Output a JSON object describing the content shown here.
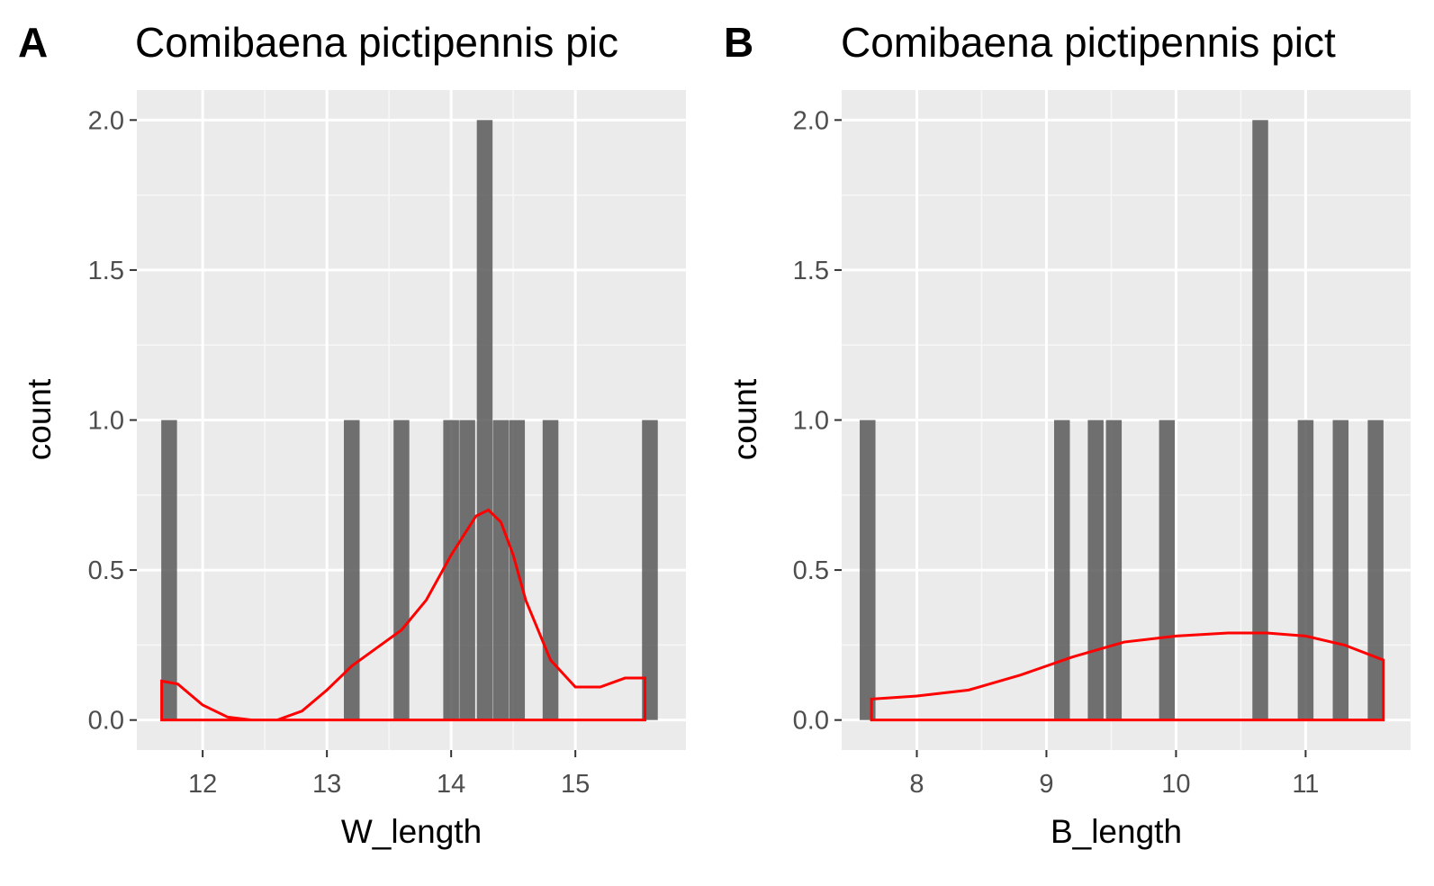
{
  "chart_data": [
    {
      "type": "bar",
      "tag": "A",
      "title": "Comibaena pictipennis pic",
      "xlabel": "W_length",
      "ylabel": "count",
      "xlim": [
        11.47,
        15.89
      ],
      "ylim": [
        -0.1,
        2.1
      ],
      "xticks": [
        12,
        13,
        14,
        15
      ],
      "xtick_labels": [
        "12",
        "13",
        "14",
        "15"
      ],
      "yticks": [
        0,
        0.5,
        1,
        1.5,
        2
      ],
      "ytick_labels": [
        "0.0",
        "0.5",
        "1.0",
        "1.5",
        "2.0"
      ],
      "grid": true,
      "bars": [
        {
          "x": 11.73,
          "count": 1
        },
        {
          "x": 13.2,
          "count": 1
        },
        {
          "x": 13.6,
          "count": 1
        },
        {
          "x": 14.0,
          "count": 1
        },
        {
          "x": 14.13,
          "count": 1
        },
        {
          "x": 14.27,
          "count": 2
        },
        {
          "x": 14.4,
          "count": 1
        },
        {
          "x": 14.53,
          "count": 1
        },
        {
          "x": 14.8,
          "count": 1
        },
        {
          "x": 15.6,
          "count": 1
        }
      ],
      "density": {
        "color": "#ff0000",
        "x": [
          11.67,
          11.8,
          12.0,
          12.2,
          12.4,
          12.6,
          12.8,
          13.0,
          13.2,
          13.4,
          13.6,
          13.8,
          14.0,
          14.2,
          14.3,
          14.4,
          14.5,
          14.6,
          14.8,
          15.0,
          15.2,
          15.4,
          15.56
        ],
        "y": [
          0.13,
          0.12,
          0.05,
          0.01,
          0.0,
          0.0,
          0.03,
          0.1,
          0.18,
          0.24,
          0.3,
          0.4,
          0.55,
          0.68,
          0.7,
          0.66,
          0.55,
          0.4,
          0.2,
          0.11,
          0.11,
          0.14,
          0.14
        ]
      }
    },
    {
      "type": "bar",
      "tag": "B",
      "title": "Comibaena pictipennis pict",
      "xlabel": "B_length",
      "ylabel": "count",
      "xlim": [
        7.42,
        11.81
      ],
      "ylim": [
        -0.1,
        2.1
      ],
      "xticks": [
        8,
        9,
        10,
        11
      ],
      "xtick_labels": [
        "8",
        "9",
        "10",
        "11"
      ],
      "yticks": [
        0,
        0.5,
        1,
        1.5,
        2
      ],
      "ytick_labels": [
        "0.0",
        "0.5",
        "1.0",
        "1.5",
        "2.0"
      ],
      "grid": true,
      "bars": [
        {
          "x": 7.62,
          "count": 1
        },
        {
          "x": 9.12,
          "count": 1
        },
        {
          "x": 9.38,
          "count": 1
        },
        {
          "x": 9.52,
          "count": 1
        },
        {
          "x": 9.93,
          "count": 1
        },
        {
          "x": 10.65,
          "count": 2
        },
        {
          "x": 11.0,
          "count": 1
        },
        {
          "x": 11.27,
          "count": 1
        },
        {
          "x": 11.54,
          "count": 1
        }
      ],
      "density": {
        "color": "#ff0000",
        "x": [
          7.65,
          8.0,
          8.4,
          8.8,
          9.2,
          9.6,
          10.0,
          10.4,
          10.7,
          11.0,
          11.3,
          11.6
        ],
        "y": [
          0.07,
          0.08,
          0.1,
          0.15,
          0.21,
          0.26,
          0.28,
          0.29,
          0.29,
          0.28,
          0.25,
          0.2
        ]
      }
    }
  ]
}
